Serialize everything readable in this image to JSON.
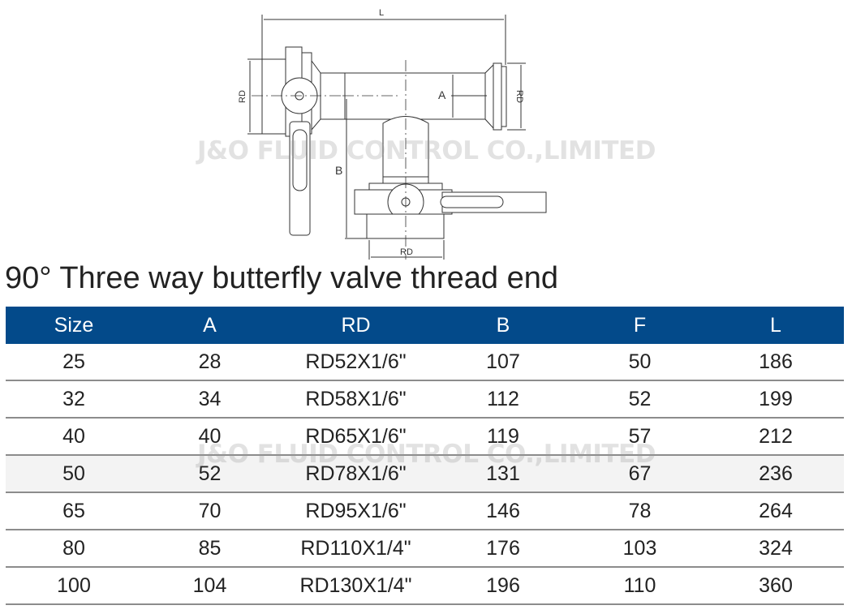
{
  "watermark": "J&O FLUID CONTROL CO.,LIMITED",
  "diagram": {
    "labels": {
      "L": "L",
      "A": "A",
      "B": "B",
      "RD_left": "RD",
      "RD_right": "RD",
      "RD_bottom": "RD"
    }
  },
  "title": "90° Three way butterfly valve thread end",
  "table": {
    "header_color": "#034a8a",
    "columns": [
      "Size",
      "A",
      "RD",
      "B",
      "F",
      "L"
    ],
    "rows": [
      [
        "25",
        "28",
        "RD52X1/6\"",
        "107",
        "50",
        "186"
      ],
      [
        "32",
        "34",
        "RD58X1/6\"",
        "112",
        "52",
        "199"
      ],
      [
        "40",
        "40",
        "RD65X1/6\"",
        "119",
        "57",
        "212"
      ],
      [
        "50",
        "52",
        "RD78X1/6\"",
        "131",
        "67",
        "236"
      ],
      [
        "65",
        "70",
        "RD95X1/6\"",
        "146",
        "78",
        "264"
      ],
      [
        "80",
        "85",
        "RD110X1/4\"",
        "176",
        "103",
        "324"
      ],
      [
        "100",
        "104",
        "RD130X1/4\"",
        "196",
        "110",
        "360"
      ]
    ]
  }
}
